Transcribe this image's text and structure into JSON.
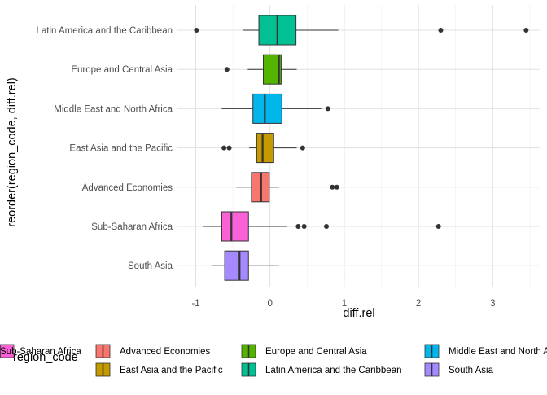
{
  "chart_data": {
    "type": "boxplot",
    "orientation": "horizontal",
    "xlabel": "diff.rel",
    "ylabel": "reorder(region_code, diff.rel)",
    "xlim": [
      -1.3,
      3.7
    ],
    "xticks": [
      -1,
      0,
      1,
      2,
      3
    ],
    "grid": "major x and y lines",
    "legend": {
      "title": "region_code",
      "placement": "bottom",
      "entries": [
        {
          "label": "Advanced Economies",
          "color": "#F8766D"
        },
        {
          "label": "East Asia and the Pacific",
          "color": "#C49A00"
        },
        {
          "label": "Europe and Central Asia",
          "color": "#53B400"
        },
        {
          "label": "Latin America and the Caribbean",
          "color": "#00C094"
        },
        {
          "label": "Middle East and North Africa",
          "color": "#00B6EB"
        },
        {
          "label": "South Asia",
          "color": "#A58AFF"
        },
        {
          "label": "Sub-Saharan Africa",
          "color": "#FB61D7"
        }
      ]
    },
    "categories_top_to_bottom": [
      "Latin America and the Caribbean",
      "Europe and Central Asia",
      "Middle East and North Africa",
      "East Asia and the Pacific",
      "Advanced Economies",
      "Sub-Saharan Africa",
      "South Asia"
    ],
    "boxes": [
      {
        "category": "Latin America and the Caribbean",
        "color": "#00C094",
        "whisker_low": -0.37,
        "q1": -0.15,
        "median": 0.1,
        "q3": 0.35,
        "whisker_high": 0.92,
        "outliers": [
          -0.99,
          2.3,
          3.45
        ]
      },
      {
        "category": "Europe and Central Asia",
        "color": "#53B400",
        "whisker_low": -0.3,
        "q1": -0.09,
        "median": 0.12,
        "q3": 0.15,
        "whisker_high": 0.36,
        "outliers": [
          -0.58
        ]
      },
      {
        "category": "Middle East and North Africa",
        "color": "#00B6EB",
        "whisker_low": -0.65,
        "q1": -0.23,
        "median": -0.07,
        "q3": 0.16,
        "whisker_high": 0.69,
        "outliers": [
          0.78
        ]
      },
      {
        "category": "East Asia and the Pacific",
        "color": "#C49A00",
        "whisker_low": -0.28,
        "q1": -0.18,
        "median": -0.1,
        "q3": 0.05,
        "whisker_high": 0.36,
        "outliers": [
          -0.62,
          -0.55,
          0.44
        ]
      },
      {
        "category": "Advanced Economies",
        "color": "#F8766D",
        "whisker_low": -0.46,
        "q1": -0.25,
        "median": -0.12,
        "q3": -0.01,
        "whisker_high": 0.12,
        "outliers": [
          0.84,
          0.9
        ]
      },
      {
        "category": "Sub-Saharan Africa",
        "color": "#FB61D7",
        "whisker_low": -0.9,
        "q1": -0.65,
        "median": -0.52,
        "q3": -0.29,
        "whisker_high": 0.23,
        "outliers": [
          0.38,
          0.46,
          0.76,
          2.27
        ]
      },
      {
        "category": "South Asia",
        "color": "#A58AFF",
        "whisker_low": -0.78,
        "q1": -0.61,
        "median": -0.41,
        "q3": -0.29,
        "whisker_high": 0.12,
        "outliers": []
      }
    ]
  }
}
